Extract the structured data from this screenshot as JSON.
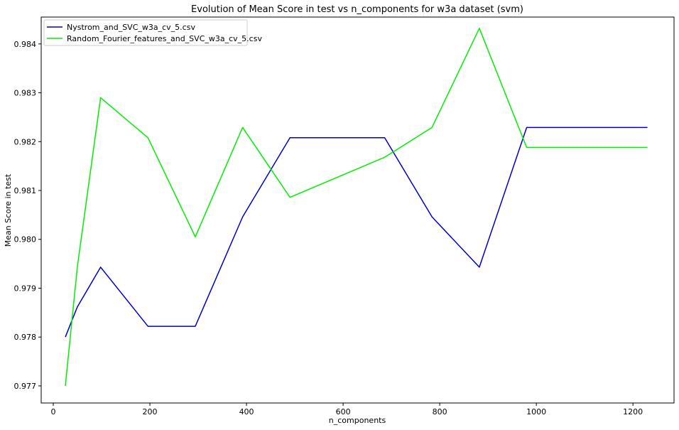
{
  "chart_data": {
    "type": "line",
    "title": "Evolution of Mean Score in test vs n_components for w3a dataset (svm)",
    "xlabel": "n_components",
    "ylabel": "Mean Score in test",
    "xlim": [
      -25,
      1285
    ],
    "ylim": [
      0.97665,
      0.98455
    ],
    "xticks": [
      0,
      200,
      400,
      600,
      800,
      1000,
      1200
    ],
    "yticks": [
      0.977,
      0.978,
      0.979,
      0.98,
      0.981,
      0.982,
      0.983,
      0.984
    ],
    "ytick_labels": [
      "0.977",
      "0.978",
      "0.979",
      "0.980",
      "0.981",
      "0.982",
      "0.983",
      "0.984"
    ],
    "grid": false,
    "legend_position": "top-left",
    "series": [
      {
        "name": "Nystrom_and_SVC_w3a_cv_5.csv",
        "color": "#0000cc",
        "x": [
          25,
          50,
          98,
          196,
          294,
          392,
          490,
          588,
          686,
          784,
          882,
          980,
          1230
        ],
        "y": [
          0.978,
          0.97862,
          0.97943,
          0.97822,
          0.97822,
          0.98046,
          0.98208,
          0.98208,
          0.98208,
          0.98046,
          0.97943,
          0.98229,
          0.98229
        ]
      },
      {
        "name": "Random_Fourier_features_and_SVC_w3a_cv_5.csv",
        "color": "#00ee00",
        "x": [
          25,
          50,
          98,
          196,
          294,
          392,
          490,
          588,
          686,
          784,
          882,
          980,
          1230
        ],
        "y": [
          0.977,
          0.97945,
          0.9829,
          0.98208,
          0.98005,
          0.98229,
          0.98086,
          0.98127,
          0.98168,
          0.98229,
          0.98432,
          0.98188,
          0.98188
        ]
      }
    ]
  }
}
